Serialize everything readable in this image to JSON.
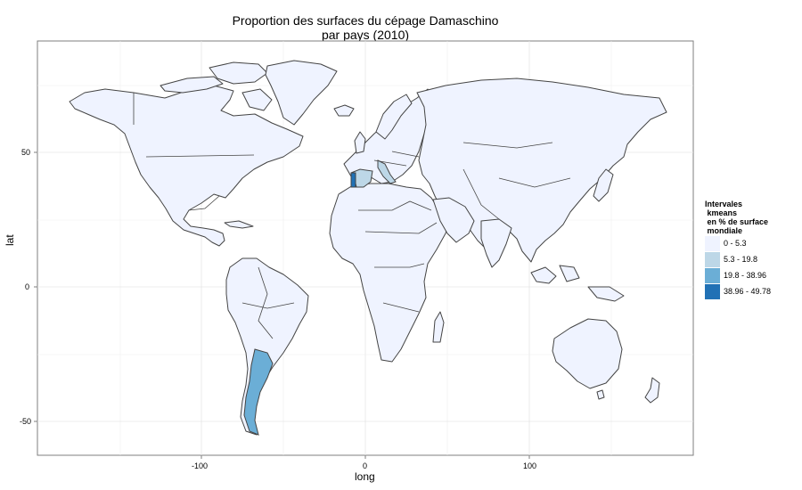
{
  "title": {
    "line1": "Proportion des surfaces du cépage Damaschino",
    "line2": "par pays (2010)"
  },
  "axes": {
    "x": {
      "label": "long",
      "ticks": [
        "-100",
        "0",
        "100"
      ]
    },
    "y": {
      "label": "lat",
      "ticks": [
        "50",
        "0",
        "-50"
      ]
    }
  },
  "legend": {
    "title": "Intervales\n kmeans\n en % de surface\n mondiale",
    "items": [
      {
        "label": "0 - 5.3",
        "color": "#eff3ff"
      },
      {
        "label": "5.3 - 19.8",
        "color": "#bdd7e7"
      },
      {
        "label": "19.8 - 38.96",
        "color": "#6baed6"
      },
      {
        "label": "38.96 - 49.78",
        "color": "#2171b5"
      }
    ]
  },
  "colors": {
    "land": "#eff3ff",
    "border": "#444444",
    "panel_border": "#7f7f7f",
    "grid": "#f0f0f0"
  },
  "highlighted_countries": [
    {
      "name": "Argentina",
      "class": "19.8 - 38.96"
    },
    {
      "name": "Portugal",
      "class": "38.96 - 49.78"
    },
    {
      "name": "Spain",
      "class": "5.3 - 19.8"
    },
    {
      "name": "Italy",
      "class": "5.3 - 19.8"
    }
  ]
}
